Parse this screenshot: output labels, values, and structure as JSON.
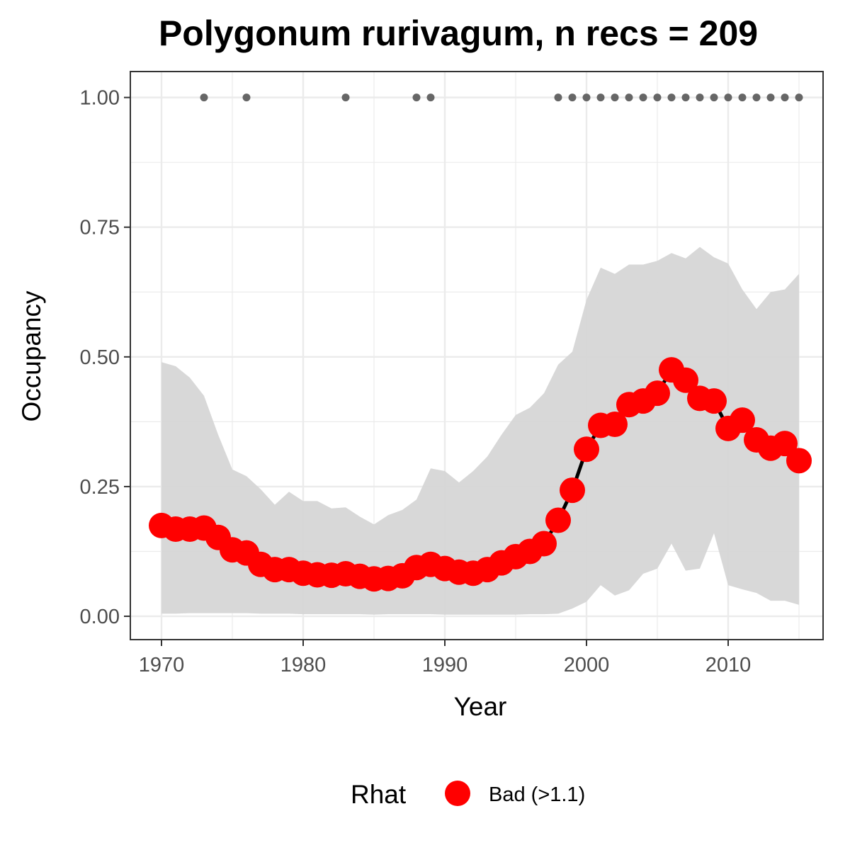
{
  "chart_data": {
    "type": "line",
    "title": "Polygonum rurivagum, n recs = 209",
    "xlabel": "Year",
    "ylabel": "Occupancy",
    "xlim": [
      1967.8,
      2016.7
    ],
    "ylim": [
      -0.045,
      1.05
    ],
    "x_ticks": [
      1970,
      1980,
      1990,
      2000,
      2010
    ],
    "x_tick_labels": [
      "1970",
      "1980",
      "1990",
      "2000",
      "2010"
    ],
    "y_ticks": [
      0,
      0.25,
      0.5,
      0.75,
      1.0
    ],
    "y_tick_labels": [
      "0.00",
      "0.25",
      "0.50",
      "0.75",
      "1.00"
    ],
    "grid": true,
    "legend": {
      "position": "bottom",
      "title": "Rhat",
      "items": [
        {
          "label": "Bad (>1.1)",
          "color": "#ff0000"
        }
      ]
    },
    "colors": {
      "points": "#ff0000",
      "line": "#000000",
      "ribbon": "#d6d6d6",
      "record_points": "#666666",
      "grid": "#ebebeb",
      "panel_border": "#333333"
    },
    "x": [
      1970,
      1971,
      1972,
      1973,
      1974,
      1975,
      1976,
      1977,
      1978,
      1979,
      1980,
      1981,
      1982,
      1983,
      1984,
      1985,
      1986,
      1987,
      1988,
      1989,
      1990,
      1991,
      1992,
      1993,
      1994,
      1995,
      1996,
      1997,
      1998,
      1999,
      2000,
      2001,
      2002,
      2003,
      2004,
      2005,
      2006,
      2007,
      2008,
      2009,
      2010,
      2011,
      2012,
      2013,
      2014,
      2015
    ],
    "series": [
      {
        "values": [
          0.175,
          0.168,
          0.168,
          0.17,
          0.152,
          0.128,
          0.122,
          0.1,
          0.09,
          0.09,
          0.083,
          0.08,
          0.079,
          0.082,
          0.077,
          0.072,
          0.073,
          0.078,
          0.094,
          0.1,
          0.092,
          0.085,
          0.083,
          0.09,
          0.103,
          0.115,
          0.125,
          0.14,
          0.185,
          0.243,
          0.322,
          0.368,
          0.37,
          0.408,
          0.415,
          0.43,
          0.475,
          0.455,
          0.42,
          0.415,
          0.362,
          0.378,
          0.34,
          0.324,
          0.333,
          0.3
        ],
        "lower": [
          0.005,
          0.005,
          0.006,
          0.006,
          0.006,
          0.006,
          0.006,
          0.005,
          0.005,
          0.005,
          0.004,
          0.004,
          0.004,
          0.004,
          0.004,
          0.003,
          0.004,
          0.004,
          0.004,
          0.004,
          0.003,
          0.003,
          0.003,
          0.003,
          0.003,
          0.003,
          0.004,
          0.004,
          0.005,
          0.015,
          0.028,
          0.06,
          0.04,
          0.05,
          0.082,
          0.092,
          0.14,
          0.088,
          0.092,
          0.16,
          0.06,
          0.052,
          0.045,
          0.03,
          0.03,
          0.022
        ],
        "upper": [
          0.49,
          0.482,
          0.46,
          0.425,
          0.35,
          0.283,
          0.27,
          0.245,
          0.215,
          0.24,
          0.222,
          0.222,
          0.208,
          0.21,
          0.192,
          0.177,
          0.195,
          0.205,
          0.225,
          0.285,
          0.28,
          0.258,
          0.28,
          0.308,
          0.35,
          0.388,
          0.402,
          0.43,
          0.485,
          0.51,
          0.61,
          0.672,
          0.66,
          0.678,
          0.678,
          0.685,
          0.7,
          0.69,
          0.712,
          0.692,
          0.68,
          0.63,
          0.592,
          0.625,
          0.63,
          0.66
        ]
      }
    ],
    "record_years": [
      1973,
      1976,
      1983,
      1988,
      1989,
      1998,
      1999,
      2000,
      2001,
      2002,
      2003,
      2004,
      2005,
      2006,
      2007,
      2008,
      2009,
      2010,
      2011,
      2012,
      2013,
      2014,
      2015
    ],
    "record_value": 1.0
  }
}
